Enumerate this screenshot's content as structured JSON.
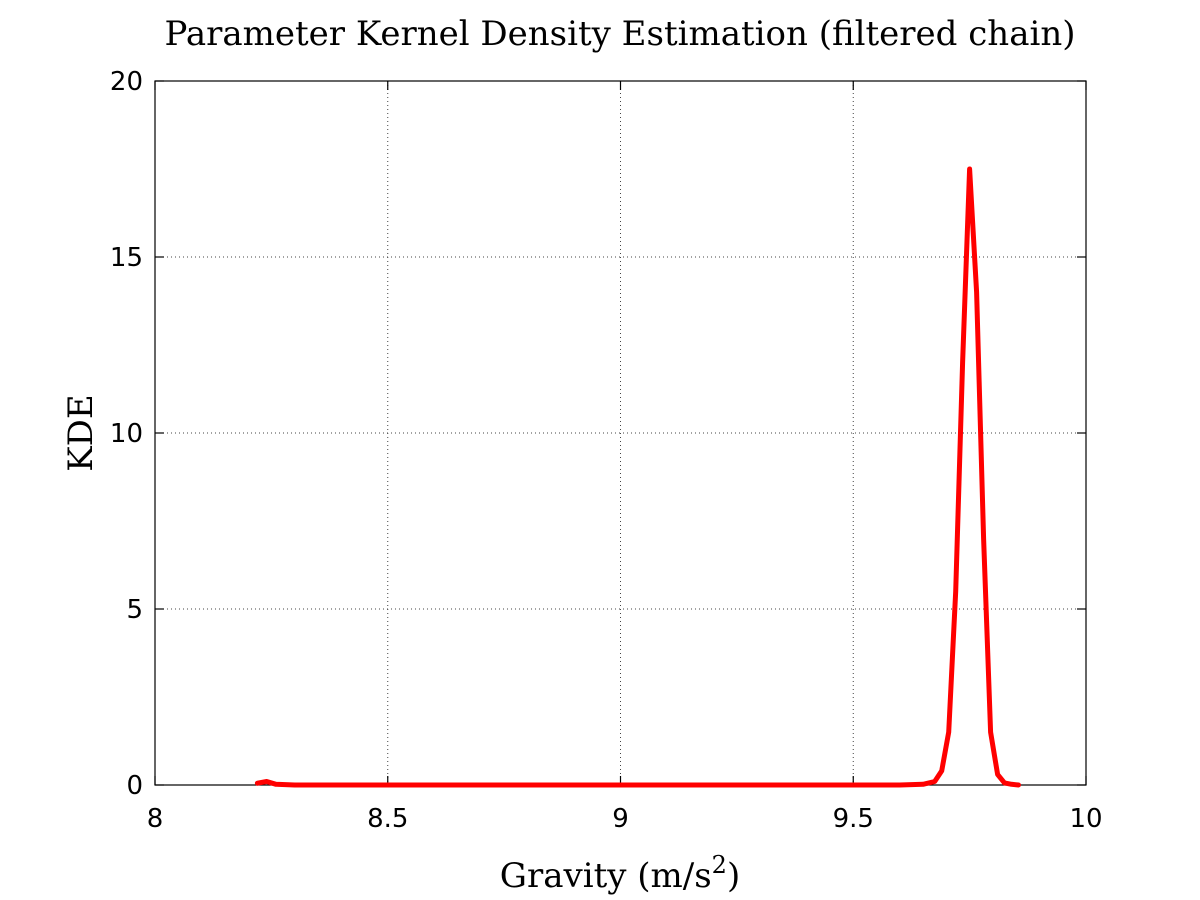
{
  "chart_data": {
    "type": "line",
    "title": "Parameter Kernel Density Estimation (filtered chain)",
    "xlabel_main": "Gravity (m/s",
    "xlabel_sup": "2",
    "xlabel_tail": ")",
    "ylabel": "KDE",
    "xlim": [
      8,
      10
    ],
    "ylim": [
      0,
      20
    ],
    "xticks": [
      8,
      8.5,
      9,
      9.5,
      10
    ],
    "xtick_labels": [
      "8",
      "8.5",
      "9",
      "9.5",
      "10"
    ],
    "yticks": [
      0,
      5,
      10,
      15,
      20
    ],
    "ytick_labels": [
      "0",
      "5",
      "10",
      "15",
      "20"
    ],
    "grid": true,
    "series": [
      {
        "color": "#ff0000",
        "x": [
          8.22,
          8.24,
          8.26,
          8.3,
          8.4,
          8.6,
          8.8,
          9.0,
          9.2,
          9.4,
          9.6,
          9.65,
          9.675,
          9.69,
          9.705,
          9.72,
          9.735,
          9.75,
          9.765,
          9.78,
          9.795,
          9.81,
          9.825,
          9.84,
          9.855
        ],
        "y": [
          0.05,
          0.1,
          0.02,
          0,
          0,
          0,
          0,
          0,
          0,
          0,
          0,
          0.02,
          0.1,
          0.4,
          1.5,
          5.5,
          12.0,
          17.5,
          14.0,
          7.0,
          1.5,
          0.3,
          0.06,
          0.02,
          0
        ]
      }
    ]
  }
}
